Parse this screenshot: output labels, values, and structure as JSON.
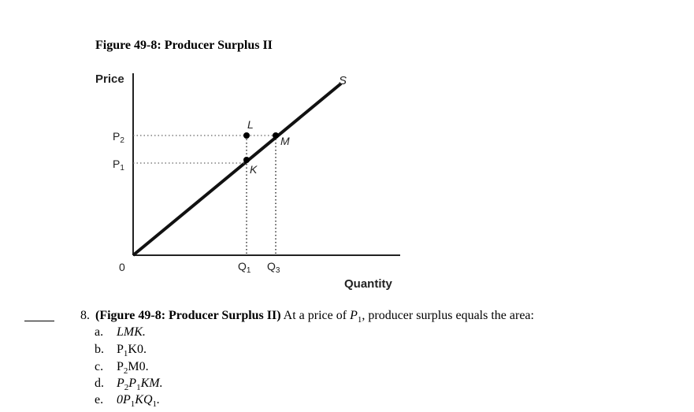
{
  "figure": {
    "title": "Figure 49-8: Producer Surplus II",
    "ylabel": "Price",
    "xlabel": "Quantity",
    "origin_label": "0",
    "curve_label": "S",
    "price_labels": [
      {
        "main": "P",
        "sub": "2"
      },
      {
        "main": "P",
        "sub": "1"
      }
    ],
    "quantity_labels": [
      {
        "main": "Q",
        "sub": "1"
      },
      {
        "main": "Q",
        "sub": "3"
      }
    ],
    "point_labels": {
      "L": "L",
      "M": "M",
      "K": "K"
    }
  },
  "chart_data": {
    "type": "line",
    "title": "Figure 49-8: Producer Surplus II",
    "xlabel": "Quantity",
    "ylabel": "Price",
    "series": [
      {
        "name": "S",
        "points": [
          [
            "0",
            "0"
          ],
          [
            "Q1",
            "P1"
          ],
          [
            "Q3",
            "P2"
          ]
        ]
      }
    ],
    "points": [
      {
        "label": "L",
        "x": "Q1",
        "y": "P2"
      },
      {
        "label": "K",
        "x": "Q1",
        "y": "P1"
      },
      {
        "label": "M",
        "x": "Q3",
        "y": "P2"
      }
    ],
    "grid": false
  },
  "question": {
    "number": "8.",
    "source": "(Figure 49-8: Producer Surplus II)",
    "text_before": " At a price of ",
    "price_main": "P",
    "price_sub": "1",
    "text_after": ", producer surplus equals the area:"
  },
  "choices": [
    {
      "letter": "a.",
      "main": "LMK."
    },
    {
      "letter": "b.",
      "main": "P",
      "sub": "1",
      "rest": "K0."
    },
    {
      "letter": "c.",
      "main": "P",
      "sub": "2",
      "rest": "M0."
    },
    {
      "letter": "d.",
      "main": "P",
      "sub": "2",
      "main2": "P",
      "sub2": "1",
      "rest": "KM."
    },
    {
      "letter": "e.",
      "main": "0P",
      "sub": "1",
      "main2": "KQ",
      "sub2": "1",
      "rest": "."
    }
  ]
}
